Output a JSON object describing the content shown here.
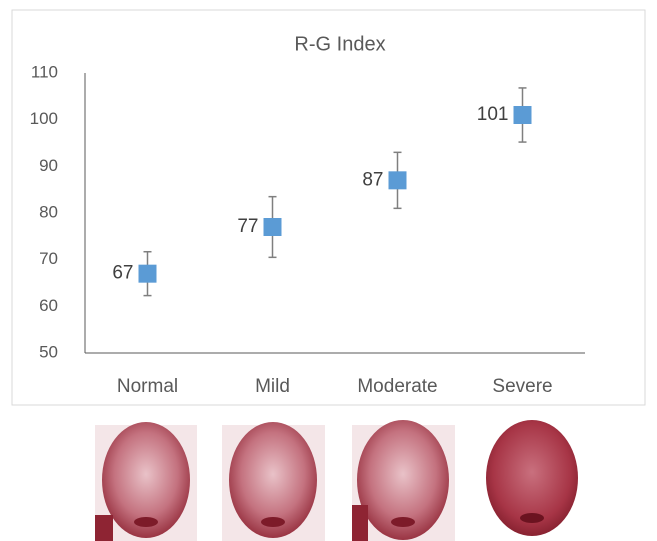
{
  "chart_data": {
    "type": "errorbar",
    "title": "R-G Index",
    "categories": [
      "Normal",
      "Mild",
      "Moderate",
      "Severe"
    ],
    "values": [
      67,
      77,
      87,
      101
    ],
    "errors": [
      4.7,
      6.5,
      6,
      5.8
    ],
    "color": "#5b9bd5",
    "ylim": [
      50,
      110
    ],
    "yticks": [
      50,
      60,
      70,
      80,
      90,
      100,
      110
    ],
    "grid": false
  }
}
